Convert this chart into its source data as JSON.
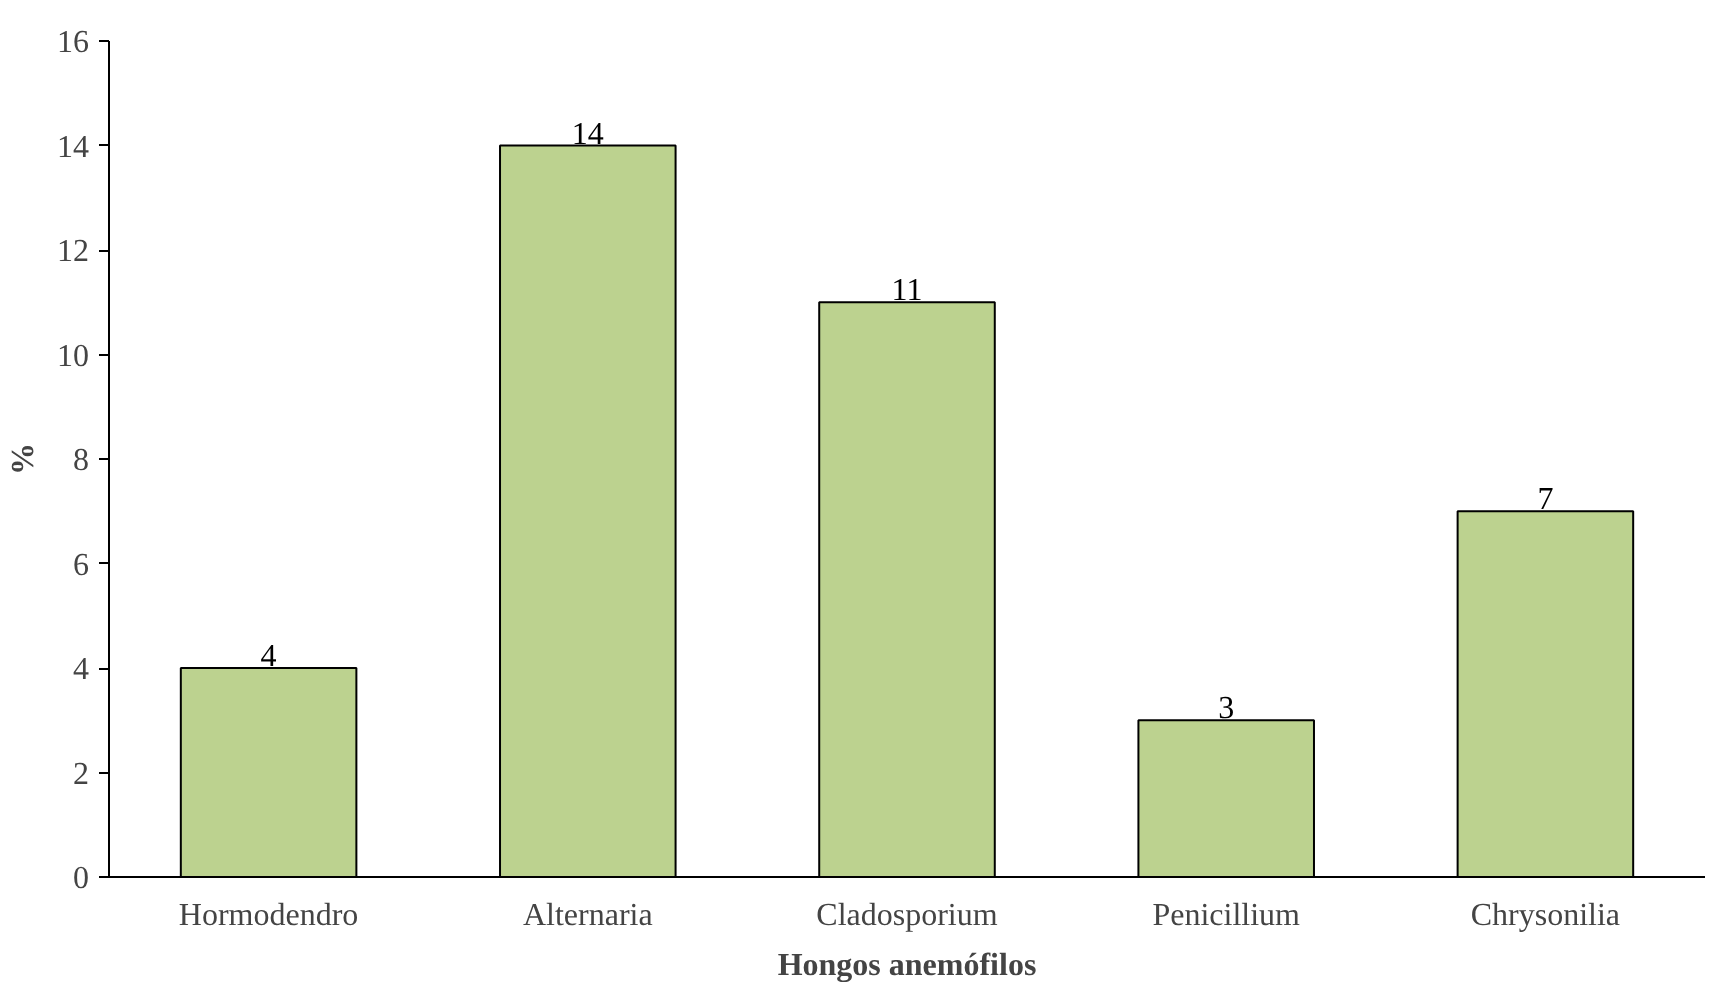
{
  "chart_data": {
    "type": "bar",
    "xlabel": "Hongos anemófilos",
    "ylabel": "%",
    "categories": [
      "Hormodendro",
      "Alternaria",
      "Cladosporium",
      "Penicillium",
      "Chrysonilia"
    ],
    "values": [
      4,
      14,
      11,
      3,
      7
    ],
    "color": "#bcd28f",
    "ylim": [
      0,
      16
    ],
    "yticks": [
      0,
      2,
      4,
      6,
      8,
      10,
      12,
      14,
      16
    ],
    "grid": false,
    "data_labels": true
  }
}
